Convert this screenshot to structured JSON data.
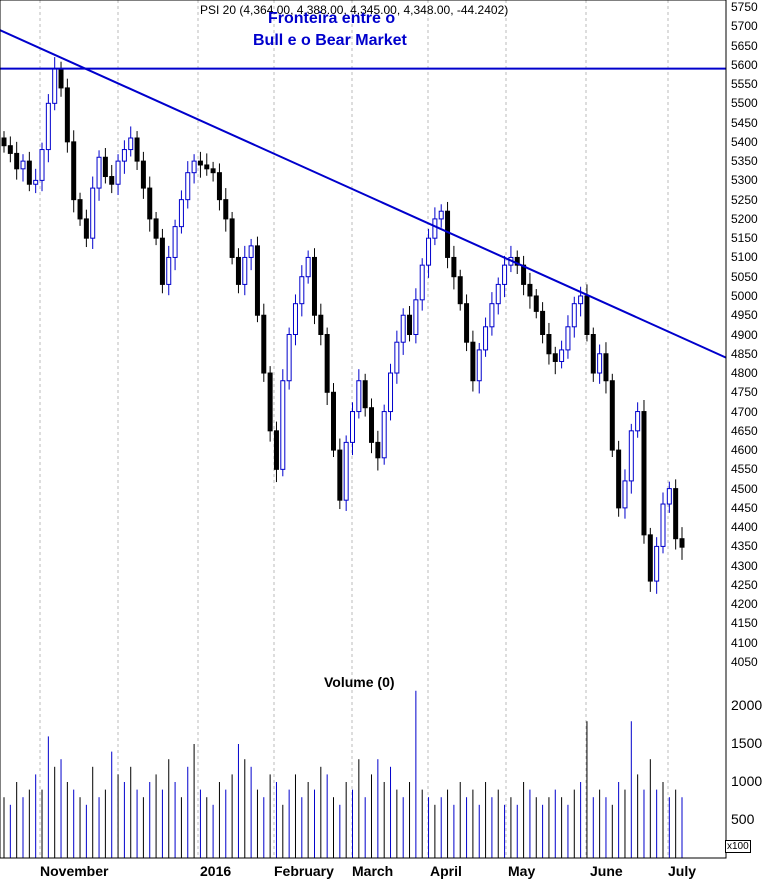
{
  "colors": {
    "up": "#0000cc",
    "down": "#000000",
    "trend": "#0000cc",
    "grid": "#bbbbbb"
  },
  "chart_data": {
    "type": "candlestick",
    "title": "PSI 20 (4,364.00, 4,388.00, 4,345.00, 4,348.00, -44.2402)",
    "annotation_line1": "Fronteira entre o",
    "annotation_line2": "Bull e o Bear Market",
    "volume_title": "Volume (0)",
    "volume_unit": "x100",
    "price_range": [
      4000,
      5770
    ],
    "volume_range": [
      0,
      2200
    ],
    "price_ticks": [
      "5750",
      "5700",
      "5650",
      "5600",
      "5550",
      "5500",
      "5450",
      "5400",
      "5350",
      "5300",
      "5250",
      "5200",
      "5150",
      "5100",
      "5050",
      "5000",
      "4950",
      "4900",
      "4850",
      "4800",
      "4750",
      "4700",
      "4650",
      "4600",
      "4550",
      "4500",
      "4450",
      "4400",
      "4350",
      "4300",
      "4250",
      "4200",
      "4150",
      "4100",
      "4050"
    ],
    "volume_ticks": [
      "2000",
      "1500",
      "1000",
      "500"
    ],
    "months": [
      "November",
      "2016",
      "February",
      "March",
      "April",
      "May",
      "June",
      "July"
    ],
    "closes": [
      5390,
      5370,
      5330,
      5350,
      5290,
      5300,
      5380,
      5500,
      5590,
      5540,
      5400,
      5250,
      5200,
      5150,
      5280,
      5360,
      5310,
      5290,
      5350,
      5380,
      5410,
      5350,
      5280,
      5200,
      5150,
      5030,
      5100,
      5180,
      5250,
      5320,
      5350,
      5340,
      5330,
      5320,
      5250,
      5200,
      5100,
      5030,
      5100,
      5130,
      4950,
      4800,
      4650,
      4550,
      4780,
      4900,
      4980,
      5050,
      5100,
      4950,
      4900,
      4750,
      4600,
      4470,
      4620,
      4700,
      4780,
      4710,
      4620,
      4580,
      4700,
      4800,
      4880,
      4950,
      4900,
      4990,
      5080,
      5150,
      5200,
      5220,
      5100,
      5050,
      4980,
      4880,
      4780,
      4860,
      4920,
      4980,
      5030,
      5080,
      5100,
      5080,
      5030,
      5000,
      4960,
      4900,
      4850,
      4830,
      4860,
      4920,
      4980,
      5000,
      4900,
      4800,
      4850,
      4780,
      4600,
      4450,
      4520,
      4650,
      4700,
      4380,
      4260,
      4350,
      4460,
      4500,
      4370,
      4348
    ],
    "volumes": [
      800,
      700,
      1000,
      800,
      900,
      1100,
      900,
      1600,
      1200,
      1300,
      1000,
      900,
      800,
      700,
      1200,
      800,
      900,
      1400,
      1100,
      1000,
      1200,
      900,
      800,
      1000,
      1100,
      900,
      1300,
      1000,
      800,
      1200,
      1500,
      900,
      800,
      700,
      1000,
      900,
      1100,
      1500,
      1300,
      1200,
      900,
      800,
      1100,
      1000,
      700,
      900,
      1100,
      800,
      1000,
      900,
      1200,
      1100,
      800,
      700,
      1000,
      900,
      1300,
      800,
      1100,
      1300,
      1000,
      1200,
      900,
      800,
      1000,
      2200,
      900,
      800,
      700,
      800,
      900,
      700,
      1000,
      800,
      900,
      700,
      1000,
      800,
      900,
      700,
      800,
      700,
      1000,
      900,
      800,
      700,
      800,
      900,
      800,
      700,
      900,
      1000,
      1800,
      800,
      900,
      800,
      700,
      1000,
      900,
      1800,
      1100,
      900,
      1300,
      900,
      1000,
      800,
      900,
      800
    ],
    "trendline_diagonal": [
      [
        0,
        5690
      ],
      [
        108,
        4840
      ]
    ],
    "trendline_horizontal": 5590
  }
}
